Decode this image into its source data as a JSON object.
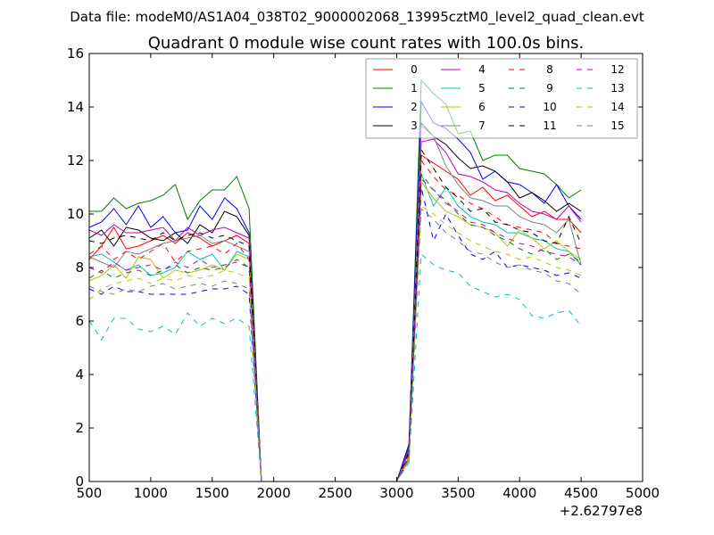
{
  "chart_data": {
    "type": "line",
    "suptitle": "Data file: modeM0/AS1A04_038T02_9000002068_13995cztM0_level2_quad_clean.evt",
    "title": "Quadrant 0 module wise count rates with 100.0s bins.",
    "xlabel": "",
    "ylabel": "",
    "x_offset_label": "+2.62797e8",
    "xlim": [
      500,
      5000
    ],
    "ylim": [
      0,
      16
    ],
    "xticks": [
      "500",
      "1000",
      "1500",
      "2000",
      "2500",
      "3000",
      "3500",
      "4000",
      "4500",
      "5000"
    ],
    "yticks": [
      "0",
      "2",
      "4",
      "6",
      "8",
      "10",
      "12",
      "14",
      "16"
    ],
    "grid": false,
    "legend": "top-right",
    "x": [
      500,
      600,
      700,
      800,
      900,
      1000,
      1100,
      1200,
      1300,
      1400,
      1500,
      1600,
      1700,
      1800,
      1900,
      2000,
      2100,
      2200,
      2300,
      2400,
      2500,
      2600,
      2700,
      2800,
      2900,
      3000,
      3100,
      3200,
      3300,
      3400,
      3500,
      3600,
      3700,
      3800,
      3900,
      4000,
      4100,
      4200,
      4300,
      4400,
      4500
    ],
    "series": [
      {
        "name": "0",
        "color": "#ff0000",
        "dash": "solid",
        "values": [
          8.3,
          8.8,
          9.5,
          8.7,
          8.8,
          9.0,
          9.2,
          8.9,
          9.3,
          9.1,
          8.8,
          9.0,
          9.2,
          8.9,
          0,
          0,
          0,
          0,
          0,
          0,
          0,
          0,
          0,
          0,
          0,
          0,
          1.1,
          12.2,
          11.9,
          11.6,
          11.3,
          10.7,
          11.0,
          10.5,
          10.7,
          10.3,
          9.9,
          10.1,
          9.8,
          9.8,
          9.3
        ]
      },
      {
        "name": "1",
        "color": "#008000",
        "dash": "solid",
        "values": [
          10.1,
          10.1,
          10.6,
          10.2,
          10.4,
          10.5,
          10.7,
          11.1,
          9.8,
          10.5,
          10.9,
          10.9,
          11.4,
          10.2,
          0,
          0,
          0,
          0,
          0,
          0,
          0,
          0,
          0,
          0,
          0,
          0,
          1.3,
          15.0,
          14.5,
          14.1,
          13.0,
          13.1,
          12.0,
          12.2,
          12.2,
          11.7,
          11.6,
          11.5,
          11.1,
          10.6,
          10.9
        ]
      },
      {
        "name": "2",
        "color": "#0000ff",
        "dash": "solid",
        "values": [
          9.5,
          9.7,
          10.2,
          9.6,
          10.3,
          9.5,
          9.9,
          9.3,
          9.4,
          10.3,
          9.8,
          10.6,
          10.2,
          9.3,
          0,
          0,
          0,
          0,
          0,
          0,
          0,
          0,
          0,
          0,
          0,
          0,
          1.4,
          14.2,
          13.4,
          13.2,
          12.8,
          12.3,
          11.3,
          11.6,
          11.2,
          11.1,
          10.8,
          10.4,
          11.1,
          10.3,
          9.8
        ]
      },
      {
        "name": "3",
        "color": "#000000",
        "dash": "solid",
        "values": [
          9.1,
          9.4,
          8.8,
          9.5,
          9.4,
          9.1,
          9.0,
          9.3,
          8.9,
          9.6,
          9.3,
          10.1,
          9.9,
          9.2,
          0,
          0,
          0,
          0,
          0,
          0,
          0,
          0,
          0,
          0,
          0,
          0,
          1.2,
          13.4,
          12.9,
          12.6,
          12.1,
          11.7,
          11.8,
          11.6,
          11.2,
          10.6,
          10.8,
          10.5,
          10.1,
          10.4,
          10.1
        ]
      },
      {
        "name": "4",
        "color": "#bf00bf",
        "dash": "solid",
        "values": [
          9.4,
          9.2,
          9.6,
          9.3,
          9.3,
          9.4,
          9.5,
          9.0,
          9.5,
          9.2,
          9.4,
          9.5,
          9.3,
          9.1,
          0,
          0,
          0,
          0,
          0,
          0,
          0,
          0,
          0,
          0,
          0,
          0,
          1.2,
          12.7,
          12.8,
          12.3,
          11.5,
          11.4,
          11.2,
          10.9,
          10.8,
          10.4,
          10.1,
          10.0,
          9.8,
          10.3,
          9.7
        ]
      },
      {
        "name": "5",
        "color": "#00bfbf",
        "dash": "solid",
        "values": [
          8.4,
          8.5,
          8.2,
          7.9,
          8.1,
          7.7,
          7.8,
          8.0,
          8.6,
          8.3,
          8.5,
          7.9,
          8.6,
          8.4,
          0,
          0,
          0,
          0,
          0,
          0,
          0,
          0,
          0,
          0,
          0,
          0,
          0.9,
          11.5,
          10.3,
          11.0,
          10.3,
          9.9,
          9.7,
          9.6,
          9.3,
          9.3,
          9.1,
          9.0,
          8.7,
          8.6,
          8.1
        ]
      },
      {
        "name": "6",
        "color": "#bfbf00",
        "dash": "solid",
        "values": [
          7.5,
          7.7,
          8.1,
          7.6,
          8.4,
          8.3,
          7.6,
          7.9,
          7.8,
          7.9,
          8.1,
          7.9,
          8.5,
          8.3,
          0,
          0,
          0,
          0,
          0,
          0,
          0,
          0,
          0,
          0,
          0,
          0,
          0.9,
          11.2,
          10.6,
          10.1,
          9.9,
          9.6,
          9.5,
          9.3,
          8.8,
          9.4,
          9.1,
          8.7,
          9.0,
          8.6,
          8.3
        ]
      },
      {
        "name": "7",
        "color": "#808080",
        "dash": "solid",
        "values": [
          8.4,
          8.2,
          8.0,
          8.6,
          8.5,
          8.7,
          8.9,
          9.0,
          9.1,
          9.2,
          8.9,
          9.0,
          8.8,
          8.6,
          0,
          0,
          0,
          0,
          0,
          0,
          0,
          0,
          0,
          0,
          0,
          0,
          1.1,
          13.3,
          12.9,
          11.8,
          11.1,
          10.6,
          10.5,
          10.3,
          10.3,
          9.9,
          9.7,
          9.6,
          9.3,
          9.8,
          8.1
        ]
      },
      {
        "name": "8",
        "color": "#ff0000",
        "dash": "dashed",
        "values": [
          8.5,
          8.8,
          8.3,
          8.6,
          8.3,
          8.6,
          8.9,
          8.2,
          8.6,
          8.7,
          8.8,
          8.5,
          8.9,
          8.3,
          0,
          0,
          0,
          0,
          0,
          0,
          0,
          0,
          0,
          0,
          0,
          0,
          1.0,
          12.0,
          11.4,
          10.9,
          10.7,
          10.4,
          10.2,
          9.9,
          9.6,
          9.5,
          9.4,
          9.3,
          8.9,
          8.8,
          8.7
        ]
      },
      {
        "name": "9",
        "color": "#008000",
        "dash": "dashed",
        "values": [
          7.6,
          7.9,
          7.6,
          7.8,
          7.9,
          7.7,
          7.9,
          8.1,
          7.8,
          8.0,
          7.9,
          8.0,
          8.3,
          8.0,
          0,
          0,
          0,
          0,
          0,
          0,
          0,
          0,
          0,
          0,
          0,
          0,
          0.9,
          11.5,
          10.9,
          10.5,
          10.0,
          9.6,
          9.5,
          9.2,
          9.0,
          8.7,
          8.5,
          8.7,
          8.3,
          8.5,
          8.2
        ]
      },
      {
        "name": "10",
        "color": "#0000ff",
        "dash": "dashed",
        "values": [
          7.2,
          7.0,
          7.3,
          7.1,
          7.1,
          7.0,
          7.0,
          7.0,
          7.0,
          7.1,
          7.2,
          7.2,
          7.3,
          7.0,
          0,
          0,
          0,
          0,
          0,
          0,
          0,
          0,
          0,
          0,
          0,
          0,
          0.8,
          11.0,
          9.0,
          10.0,
          9.2,
          8.5,
          8.3,
          8.6,
          8.0,
          8.1,
          8.0,
          7.9,
          7.7,
          7.8,
          7.6
        ]
      },
      {
        "name": "11",
        "color": "#000000",
        "dash": "dashed",
        "values": [
          9.0,
          8.9,
          9.1,
          9.2,
          9.1,
          9.0,
          9.3,
          9.0,
          9.2,
          9.3,
          9.1,
          9.2,
          9.0,
          8.8,
          0,
          0,
          0,
          0,
          0,
          0,
          0,
          0,
          0,
          0,
          0,
          0,
          1.1,
          12.4,
          11.7,
          11.0,
          10.6,
          10.1,
          10.2,
          9.7,
          9.6,
          9.4,
          9.3,
          9.0,
          8.9,
          9.9,
          8.9
        ]
      },
      {
        "name": "12",
        "color": "#bf00bf",
        "dash": "dashed",
        "values": [
          8.0,
          7.8,
          8.2,
          7.9,
          8.0,
          8.1,
          7.9,
          8.2,
          8.0,
          8.3,
          8.0,
          8.1,
          8.2,
          8.0,
          0,
          0,
          0,
          0,
          0,
          0,
          0,
          0,
          0,
          0,
          0,
          0,
          1.0,
          11.3,
          10.9,
          10.4,
          10.1,
          9.7,
          9.6,
          9.3,
          9.1,
          8.9,
          8.8,
          8.6,
          8.5,
          8.4,
          8.1
        ]
      },
      {
        "name": "13",
        "color": "#00bfbf",
        "dash": "dashed",
        "values": [
          6.0,
          5.3,
          6.1,
          6.1,
          5.7,
          5.6,
          5.8,
          5.5,
          6.3,
          5.8,
          6.1,
          5.9,
          6.1,
          5.8,
          0,
          0,
          0,
          0,
          0,
          0,
          0,
          0,
          0,
          0,
          0,
          0,
          0.7,
          8.5,
          8.1,
          7.9,
          7.8,
          7.3,
          7.1,
          6.9,
          7.0,
          6.8,
          6.2,
          6.1,
          6.3,
          6.4,
          5.8
        ]
      },
      {
        "name": "14",
        "color": "#bfbf00",
        "dash": "dashed",
        "values": [
          6.8,
          7.2,
          7.4,
          7.5,
          7.6,
          7.4,
          7.6,
          7.5,
          7.7,
          7.6,
          7.7,
          7.9,
          7.8,
          7.6,
          0,
          0,
          0,
          0,
          0,
          0,
          0,
          0,
          0,
          0,
          0,
          0,
          0.8,
          10.3,
          10.0,
          9.6,
          9.3,
          9.0,
          8.8,
          8.6,
          8.5,
          8.3,
          8.4,
          8.2,
          8.0,
          7.9,
          7.7
        ]
      },
      {
        "name": "15",
        "color": "#808080",
        "dash": "dashed",
        "values": [
          7.3,
          7.1,
          7.0,
          7.2,
          7.1,
          7.3,
          7.4,
          7.2,
          7.3,
          7.4,
          7.3,
          7.5,
          7.4,
          7.2,
          0,
          0,
          0,
          0,
          0,
          0,
          0,
          0,
          0,
          0,
          0,
          0,
          0.8,
          10.2,
          9.8,
          9.3,
          9.0,
          8.6,
          8.5,
          8.2,
          8.0,
          8.1,
          7.9,
          7.8,
          7.5,
          7.4,
          7.0
        ]
      }
    ]
  }
}
